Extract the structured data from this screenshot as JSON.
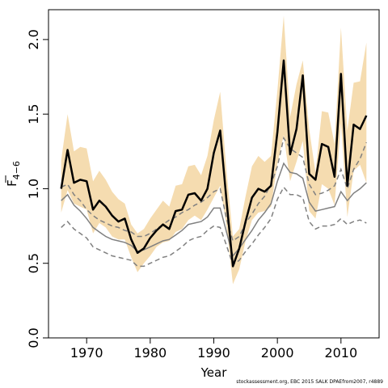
{
  "chart_data": {
    "type": "line",
    "xlabel": "Year",
    "ylabel": "F̅ 4−6",
    "ylabel_main": "F",
    "ylabel_sub": "4−6",
    "xlim": [
      1964,
      2016
    ],
    "ylim": [
      0,
      2.2
    ],
    "x_ticks": [
      1970,
      1980,
      1990,
      2000,
      2010
    ],
    "y_ticks": [
      0.0,
      0.5,
      1.0,
      1.5,
      2.0
    ],
    "y_tick_labels": [
      "0.0",
      "0.5",
      "1.0",
      "1.5",
      "2.0"
    ],
    "colors": {
      "band": "#f5dcb0",
      "estimate": "#000000",
      "comparison": "#808080"
    },
    "x": [
      1966,
      1967,
      1968,
      1969,
      1970,
      1971,
      1972,
      1973,
      1974,
      1975,
      1976,
      1977,
      1978,
      1979,
      1980,
      1981,
      1982,
      1983,
      1984,
      1985,
      1986,
      1987,
      1988,
      1989,
      1990,
      1991,
      1992,
      1993,
      1994,
      1995,
      1996,
      1997,
      1998,
      1999,
      2000,
      2001,
      2002,
      2003,
      2004,
      2005,
      2006,
      2007,
      2008,
      2009,
      2010,
      2011,
      2012,
      2013,
      2014
    ],
    "series": [
      {
        "role": "upper-ci",
        "values": [
          1.19,
          1.5,
          1.25,
          1.28,
          1.27,
          1.05,
          1.12,
          1.06,
          0.98,
          0.93,
          0.9,
          0.76,
          0.7,
          0.73,
          0.8,
          0.86,
          0.92,
          0.88,
          1.02,
          1.03,
          1.15,
          1.16,
          1.09,
          1.22,
          1.46,
          1.65,
          1.12,
          0.68,
          0.73,
          0.95,
          1.15,
          1.22,
          1.18,
          1.22,
          1.66,
          2.16,
          1.48,
          1.7,
          1.86,
          1.4,
          1.11,
          1.52,
          1.51,
          1.3,
          2.08,
          1.39,
          1.71,
          1.72,
          1.98
        ]
      },
      {
        "role": "lower-ci",
        "values": [
          0.84,
          0.99,
          0.9,
          0.88,
          0.86,
          0.7,
          0.77,
          0.74,
          0.68,
          0.66,
          0.66,
          0.54,
          0.44,
          0.5,
          0.55,
          0.61,
          0.64,
          0.65,
          0.71,
          0.73,
          0.79,
          0.82,
          0.79,
          0.86,
          0.94,
          1.02,
          0.75,
          0.36,
          0.46,
          0.65,
          0.79,
          0.84,
          0.85,
          0.88,
          1.17,
          1.36,
          1.05,
          1.18,
          1.32,
          0.85,
          0.8,
          1.03,
          1.0,
          0.89,
          1.44,
          0.81,
          1.12,
          1.16,
          1.04
        ]
      },
      {
        "role": "estimate",
        "values": [
          1.0,
          1.26,
          1.04,
          1.06,
          1.05,
          0.86,
          0.92,
          0.88,
          0.82,
          0.78,
          0.8,
          0.66,
          0.57,
          0.6,
          0.67,
          0.72,
          0.76,
          0.73,
          0.85,
          0.86,
          0.96,
          0.97,
          0.92,
          1.0,
          1.24,
          1.39,
          0.92,
          0.48,
          0.6,
          0.78,
          0.94,
          1.0,
          0.98,
          1.02,
          1.38,
          1.86,
          1.23,
          1.4,
          1.76,
          1.1,
          1.06,
          1.3,
          1.28,
          1.08,
          1.77,
          1.02,
          1.43,
          1.4,
          1.49
        ]
      },
      {
        "role": "comparison-upper",
        "values": [
          1.01,
          1.03,
          0.96,
          0.92,
          0.86,
          0.82,
          0.79,
          0.77,
          0.75,
          0.74,
          0.72,
          0.71,
          0.68,
          0.68,
          0.7,
          0.73,
          0.76,
          0.79,
          0.81,
          0.84,
          0.86,
          0.89,
          0.91,
          0.94,
          0.98,
          1.0,
          0.8,
          0.65,
          0.68,
          0.77,
          0.83,
          0.9,
          0.95,
          1.03,
          1.15,
          1.34,
          1.27,
          1.24,
          1.21,
          1.03,
          0.96,
          0.97,
          0.99,
          1.02,
          1.13,
          1.0,
          1.13,
          1.2,
          1.31
        ]
      },
      {
        "role": "comparison-mid",
        "values": [
          0.92,
          0.96,
          0.89,
          0.85,
          0.8,
          0.74,
          0.71,
          0.68,
          0.66,
          0.65,
          0.64,
          0.62,
          0.58,
          0.59,
          0.61,
          0.63,
          0.65,
          0.66,
          0.69,
          0.72,
          0.76,
          0.77,
          0.78,
          0.81,
          0.87,
          0.87,
          0.71,
          0.55,
          0.6,
          0.66,
          0.72,
          0.79,
          0.84,
          0.9,
          1.05,
          1.17,
          1.11,
          1.1,
          1.07,
          0.91,
          0.85,
          0.86,
          0.87,
          0.88,
          0.98,
          0.92,
          0.97,
          1.0,
          1.04
        ]
      },
      {
        "role": "comparison-lower",
        "values": [
          0.74,
          0.78,
          0.73,
          0.7,
          0.67,
          0.61,
          0.59,
          0.57,
          0.55,
          0.54,
          0.53,
          0.52,
          0.48,
          0.48,
          0.5,
          0.52,
          0.54,
          0.55,
          0.58,
          0.61,
          0.65,
          0.67,
          0.68,
          0.72,
          0.75,
          0.74,
          0.62,
          0.49,
          0.52,
          0.58,
          0.63,
          0.69,
          0.74,
          0.8,
          0.93,
          1.01,
          0.96,
          0.96,
          0.94,
          0.78,
          0.73,
          0.75,
          0.75,
          0.76,
          0.8,
          0.76,
          0.78,
          0.79,
          0.77
        ]
      }
    ]
  },
  "footer": "stockassessment.org, EBC 2015 SALK DPAEfrom2007, r4889"
}
